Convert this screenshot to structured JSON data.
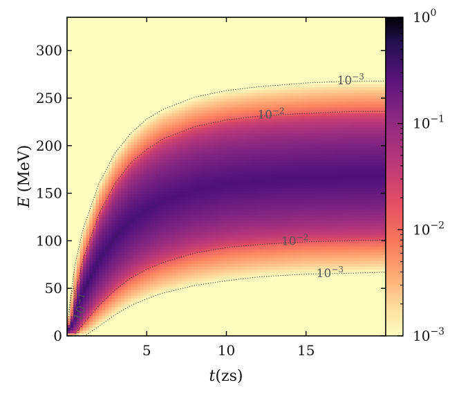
{
  "chart_data": {
    "type": "heatmap",
    "title": "",
    "xlabel": {
      "var": "t",
      "unit": "(zs)"
    },
    "ylabel": {
      "var": "E",
      "unit": "(MeV)"
    },
    "xlim": [
      0,
      20
    ],
    "ylim": [
      0,
      335
    ],
    "x_ticks": [
      5,
      10,
      15
    ],
    "y_ticks": [
      0,
      50,
      100,
      150,
      200,
      250,
      300
    ],
    "colorbar": {
      "scale": "log",
      "range": [
        0.001,
        1
      ],
      "colormap": "magma",
      "tick_labels": [
        {
          "value": 1,
          "base": "10",
          "exp": "0"
        },
        {
          "value": 0.1,
          "base": "10",
          "exp": "−1"
        },
        {
          "value": 0.01,
          "base": "10",
          "exp": "−2"
        },
        {
          "value": 0.001,
          "base": "10",
          "exp": "−3"
        }
      ]
    },
    "contours": [
      {
        "level": 0.001,
        "branch": "upper",
        "label": {
          "base": "10",
          "exp": "−3"
        },
        "points": [
          [
            0.1,
            25
          ],
          [
            0.5,
            75
          ],
          [
            1,
            112
          ],
          [
            2,
            160
          ],
          [
            3,
            192
          ],
          [
            4,
            213
          ],
          [
            5,
            228
          ],
          [
            6,
            238
          ],
          [
            8,
            251
          ],
          [
            10,
            258
          ],
          [
            12,
            262
          ],
          [
            15,
            266
          ],
          [
            18,
            268
          ],
          [
            20,
            268
          ]
        ]
      },
      {
        "level": 0.01,
        "branch": "upper",
        "label": {
          "base": "10",
          "exp": "−2"
        },
        "points": [
          [
            0.2,
            12
          ],
          [
            0.6,
            50
          ],
          [
            1,
            80
          ],
          [
            2,
            128
          ],
          [
            3,
            160
          ],
          [
            4,
            182
          ],
          [
            5,
            196
          ],
          [
            6,
            207
          ],
          [
            8,
            220
          ],
          [
            10,
            227
          ],
          [
            12,
            231
          ],
          [
            15,
            234
          ],
          [
            18,
            236
          ],
          [
            20,
            236
          ]
        ]
      },
      {
        "level": 0.01,
        "branch": "lower",
        "label": {
          "base": "10",
          "exp": "−2"
        },
        "points": [
          [
            0.5,
            2
          ],
          [
            1,
            12
          ],
          [
            2,
            32
          ],
          [
            3,
            48
          ],
          [
            4,
            61
          ],
          [
            5,
            70
          ],
          [
            6,
            77
          ],
          [
            8,
            87
          ],
          [
            10,
            93
          ],
          [
            12,
            96
          ],
          [
            15,
            99
          ],
          [
            18,
            100
          ],
          [
            20,
            101
          ]
        ]
      },
      {
        "level": 0.001,
        "branch": "lower",
        "label": {
          "base": "10",
          "exp": "−3"
        },
        "points": [
          [
            1.2,
            1
          ],
          [
            2,
            10
          ],
          [
            3,
            22
          ],
          [
            4,
            32
          ],
          [
            5,
            39
          ],
          [
            6,
            45
          ],
          [
            8,
            53
          ],
          [
            10,
            58
          ],
          [
            12,
            62
          ],
          [
            15,
            65
          ],
          [
            18,
            66
          ],
          [
            20,
            67
          ]
        ]
      },
      {
        "level": 0.1,
        "branch": "core",
        "label": {
          "base": "10",
          "exp": "−1"
        },
        "points": [
          [
            0.02,
            0
          ],
          [
            0.1,
            18
          ],
          [
            0.25,
            42
          ],
          [
            0.4,
            52
          ],
          [
            0.55,
            38
          ],
          [
            0.65,
            15
          ],
          [
            0.7,
            0
          ]
        ]
      }
    ],
    "contour_labels": [
      {
        "ref": 0,
        "x": 17.8,
        "y": 269
      },
      {
        "ref": 1,
        "x": 12.8,
        "y": 233
      },
      {
        "ref": 2,
        "x": 14.3,
        "y": 100
      },
      {
        "ref": 3,
        "x": 16.5,
        "y": 66
      },
      {
        "ref": 4,
        "x": 0.9,
        "y": 30
      }
    ]
  }
}
